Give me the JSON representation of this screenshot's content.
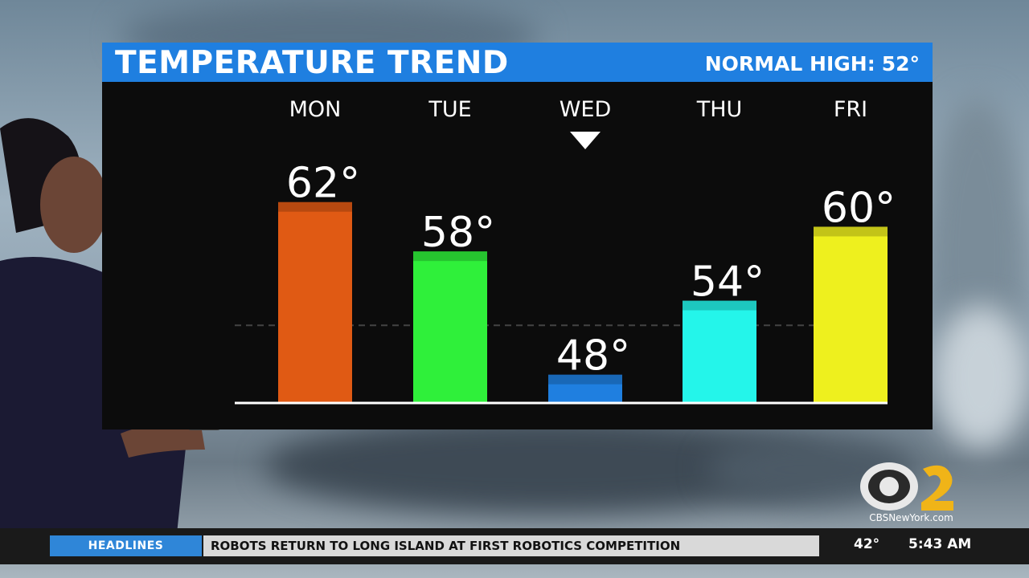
{
  "header": {
    "title": "TEMPERATURE TREND",
    "normal_label": "NORMAL HIGH:",
    "normal_value": "52°"
  },
  "chart_data": {
    "type": "bar",
    "title": "TEMPERATURE TREND",
    "categories": [
      "MON",
      "TUE",
      "WED",
      "THU",
      "FRI"
    ],
    "values": [
      62,
      58,
      48,
      54,
      60
    ],
    "value_labels": [
      "62°",
      "58°",
      "48°",
      "54°",
      "60°"
    ],
    "colors": [
      "#e05a14",
      "#2ff03a",
      "#1f7fe0",
      "#24f5ea",
      "#eef01e"
    ],
    "reference_line": {
      "value": 52
    },
    "highlight_category": "WED",
    "ylim": [
      45.7,
      62.7
    ],
    "grid": false
  },
  "ticker": {
    "tag": "HEADLINES",
    "headline": "ROBOTS RETURN TO LONG ISLAND AT FIRST ROBOTICS COMPETITION",
    "temperature": "42°",
    "time": "5:43 AM"
  },
  "logo": {
    "name": "cbs-2-logo",
    "url_text": "CBSNewYork.com"
  }
}
